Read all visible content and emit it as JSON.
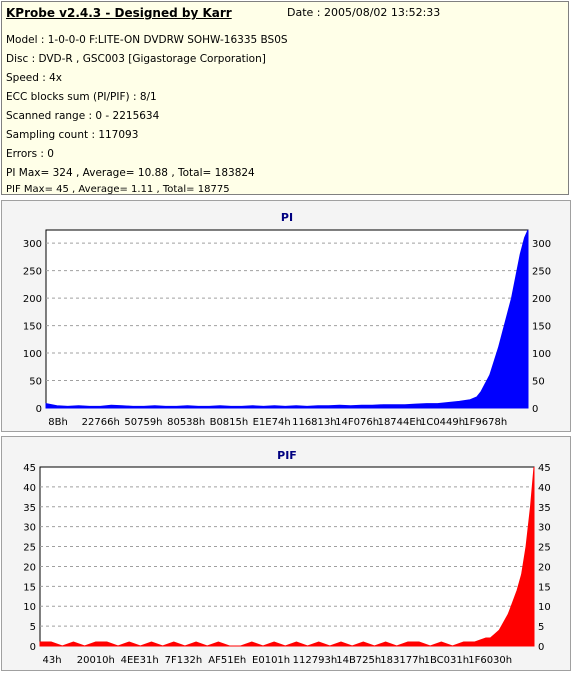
{
  "info": {
    "title": "KProbe v2.4.3 - Designed by Karr",
    "date": "Date : 2005/08/02 13:52:33",
    "lines": [
      "Model : 1-0-0-0 F:LITE-ON DVDRW SOHW-16335 BS0S",
      "Disc : DVD-R , GSC003 [Gigastorage Corporation]",
      "Speed : 4x",
      "ECC blocks sum (PI/PIF) : 8/1",
      "Scanned range : 0 - 2215634",
      "Sampling count : 117093",
      "Errors : 0",
      "PI Max= 324 , Average= 10.88 , Total= 183824",
      "PIF Max= 45 , Average= 1.11 , Total= 18775"
    ]
  },
  "chart_data": [
    {
      "type": "area",
      "title": "PI",
      "color": "#0000ff",
      "ylim": [
        0,
        324
      ],
      "yticks": [
        0,
        50,
        100,
        150,
        200,
        250,
        300
      ],
      "xtick_labels": [
        "8Bh",
        "22766h",
        "50759h",
        "80538h",
        "B0815h",
        "E1E74h",
        "116813h",
        "14F076h",
        "18744Eh",
        "1C0449h",
        "1F9678h"
      ],
      "grid": true,
      "x_range": [
        0,
        2215634
      ],
      "series": [
        {
          "x": [
            0,
            50000,
            100000,
            150000,
            200000,
            250000,
            300000,
            350000,
            400000,
            450000,
            500000,
            550000,
            600000,
            650000,
            700000,
            750000,
            800000,
            850000,
            900000,
            950000,
            1000000,
            1050000,
            1100000,
            1150000,
            1200000,
            1250000,
            1300000,
            1350000,
            1400000,
            1450000,
            1500000,
            1550000,
            1600000,
            1650000,
            1700000,
            1750000,
            1800000,
            1850000,
            1900000,
            1950000,
            1980000,
            2000000,
            2020000,
            2040000,
            2060000,
            2080000,
            2100000,
            2120000,
            2140000,
            2160000,
            2180000,
            2200000,
            2215634
          ],
          "values": [
            8,
            4,
            3,
            4,
            3,
            3,
            5,
            4,
            3,
            3,
            4,
            3,
            3,
            4,
            3,
            3,
            4,
            3,
            3,
            4,
            3,
            4,
            3,
            4,
            3,
            4,
            4,
            5,
            4,
            5,
            5,
            6,
            6,
            6,
            7,
            8,
            8,
            10,
            12,
            15,
            20,
            30,
            45,
            60,
            85,
            110,
            140,
            170,
            200,
            240,
            280,
            310,
            324
          ]
        }
      ]
    },
    {
      "type": "area",
      "title": "PIF",
      "color": "#ff0000",
      "ylim": [
        0,
        45
      ],
      "yticks": [
        0,
        5,
        10,
        15,
        20,
        25,
        30,
        35,
        40,
        45
      ],
      "xtick_labels": [
        "43h",
        "20010h",
        "4EE31h",
        "7F132h",
        "AF51Eh",
        "E0101h",
        "112793h",
        "14B725h",
        "183177h",
        "1BC031h",
        "1F6030h"
      ],
      "grid": true,
      "x_range": [
        0,
        2215634
      ],
      "series": [
        {
          "x": [
            0,
            50000,
            100000,
            150000,
            200000,
            250000,
            300000,
            350000,
            400000,
            450000,
            500000,
            550000,
            600000,
            650000,
            700000,
            750000,
            800000,
            850000,
            900000,
            950000,
            1000000,
            1050000,
            1100000,
            1150000,
            1200000,
            1250000,
            1300000,
            1350000,
            1400000,
            1450000,
            1500000,
            1550000,
            1600000,
            1650000,
            1700000,
            1750000,
            1800000,
            1850000,
            1900000,
            1950000,
            2000000,
            2020000,
            2040000,
            2060000,
            2080000,
            2100000,
            2120000,
            2140000,
            2160000,
            2180000,
            2200000,
            2215634
          ],
          "values": [
            1,
            1,
            0,
            1,
            0,
            1,
            1,
            0,
            1,
            0,
            1,
            0,
            1,
            0,
            1,
            0,
            1,
            0,
            0,
            1,
            0,
            1,
            0,
            1,
            0,
            1,
            0,
            1,
            0,
            1,
            0,
            1,
            0,
            1,
            1,
            0,
            1,
            0,
            1,
            1,
            2,
            2,
            3,
            4,
            6,
            8,
            11,
            14,
            18,
            25,
            35,
            45
          ]
        }
      ]
    }
  ]
}
